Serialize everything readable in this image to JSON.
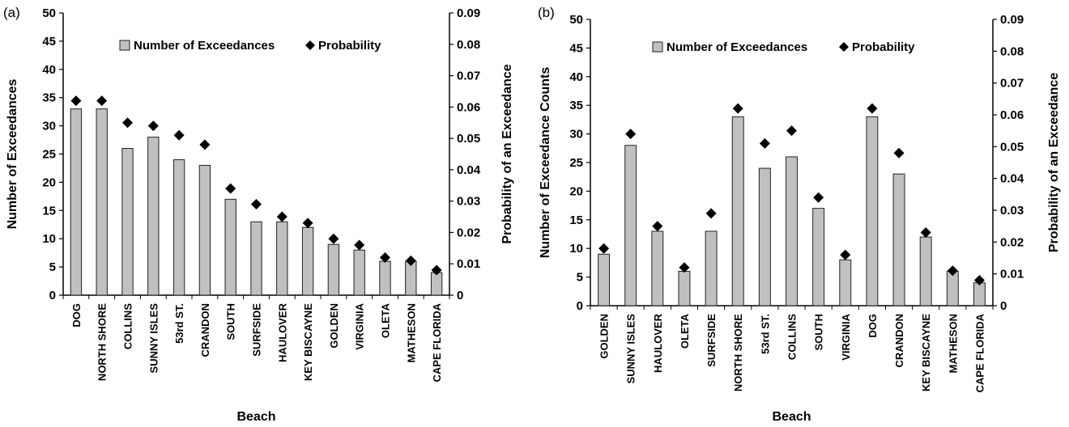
{
  "chart_data": [
    {
      "panel_label": "(a)",
      "type": "bar",
      "categories": [
        "DOG",
        "NORTH SHORE",
        "COLLINS",
        "SUNNY ISLES",
        "53rd ST.",
        "CRANDON",
        "SOUTH",
        "SURFSIDE",
        "HAULOVER",
        "KEY BISCAYNE",
        "GOLDEN",
        "VIRGINIA",
        "OLETA",
        "MATHESON",
        "CAPE FLORIDA"
      ],
      "series": [
        {
          "name": "Number of Exceedances",
          "kind": "bar",
          "axis": "left",
          "color": "#c0c0c0",
          "values": [
            33,
            33,
            26,
            28,
            24,
            23,
            17,
            13,
            13,
            12,
            9,
            8,
            6,
            6,
            4
          ]
        },
        {
          "name": "Probability",
          "kind": "marker",
          "marker": "diamond",
          "axis": "right",
          "color": "#000000",
          "values": [
            0.062,
            0.062,
            0.055,
            0.054,
            0.051,
            0.048,
            0.034,
            0.029,
            0.025,
            0.023,
            0.018,
            0.016,
            0.012,
            0.011,
            0.008
          ]
        }
      ],
      "xlabel": "Beach",
      "ylabel": "Number of Exceedances",
      "y2label": "Probability of an Exceedance",
      "ylim": [
        0,
        50
      ],
      "y2lim": [
        0,
        0.09
      ],
      "yticks": [
        "0",
        "5",
        "10",
        "15",
        "20",
        "25",
        "30",
        "35",
        "40",
        "45",
        "50"
      ],
      "y2ticks": [
        "0",
        "0.01",
        "0.02",
        "0.03",
        "0.04",
        "0.05",
        "0.06",
        "0.07",
        "0.08",
        "0.09"
      ],
      "legend_position": "top-center",
      "grid": false
    },
    {
      "panel_label": "(b)",
      "type": "bar",
      "categories": [
        "GOLDEN",
        "SUNNY ISLES",
        "HAULOVER",
        "OLETA",
        "SURFSIDE",
        "NORTH SHORE",
        "53rd ST.",
        "COLLINS",
        "SOUTH",
        "VIRGINIA",
        "DOG",
        "CRANDON",
        "KEY BISCAYNE",
        "MATHESON",
        "CAPE FLORIDA"
      ],
      "series": [
        {
          "name": "Number of Exceedances",
          "kind": "bar",
          "axis": "left",
          "color": "#c0c0c0",
          "values": [
            9,
            28,
            13,
            6,
            13,
            33,
            24,
            26,
            17,
            8,
            33,
            23,
            12,
            6,
            4
          ]
        },
        {
          "name": "Probability",
          "kind": "marker",
          "marker": "diamond",
          "axis": "right",
          "color": "#000000",
          "values": [
            0.018,
            0.054,
            0.025,
            0.012,
            0.029,
            0.062,
            0.051,
            0.055,
            0.034,
            0.016,
            0.062,
            0.048,
            0.023,
            0.011,
            0.008
          ]
        }
      ],
      "xlabel": "Beach",
      "ylabel": "Number of Exceedance Counts",
      "y2label": "Probability of an Exceedance",
      "ylim": [
        0,
        50
      ],
      "y2lim": [
        0,
        0.09
      ],
      "yticks": [
        "0",
        "5",
        "10",
        "15",
        "20",
        "25",
        "30",
        "35",
        "40",
        "45",
        "50"
      ],
      "y2ticks": [
        "0",
        "0.01",
        "0.02",
        "0.03",
        "0.04",
        "0.05",
        "0.06",
        "0.07",
        "0.08",
        "0.09"
      ],
      "legend_position": "top-center",
      "grid": false
    }
  ]
}
